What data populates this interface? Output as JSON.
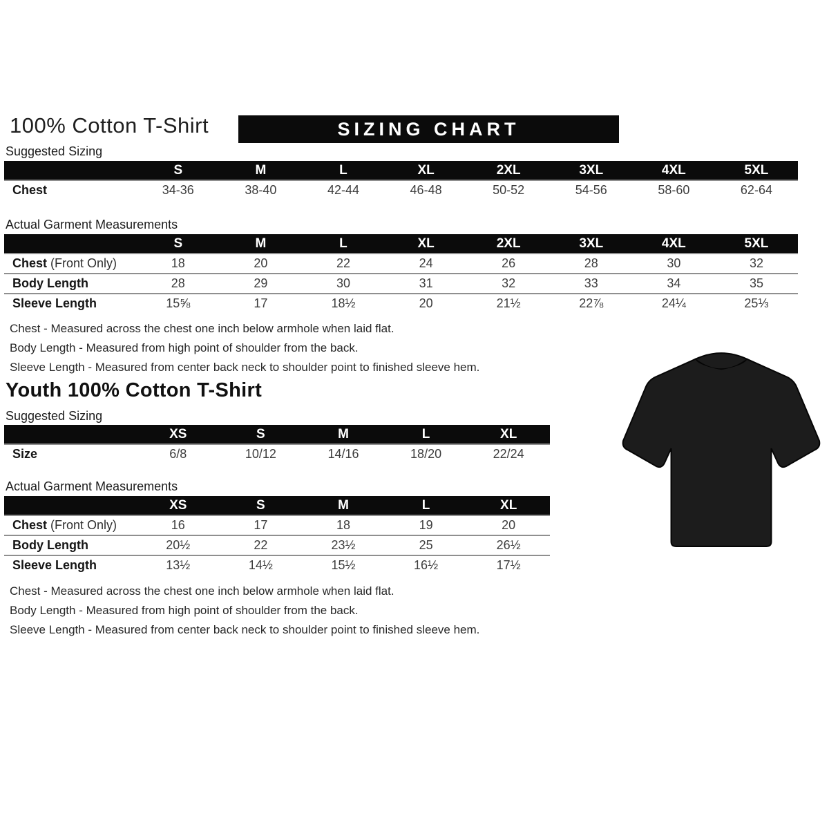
{
  "page": {
    "title": "100% Cotton T-Shirt",
    "banner": "SIZING CHART"
  },
  "adult": {
    "suggested_label": "Suggested Sizing",
    "suggested": {
      "columns": [
        "S",
        "M",
        "L",
        "XL",
        "2XL",
        "3XL",
        "4XL",
        "5XL"
      ],
      "rows": [
        {
          "label": "Chest",
          "suffix": "",
          "values": [
            "34-36",
            "38-40",
            "42-44",
            "46-48",
            "50-52",
            "54-56",
            "58-60",
            "62-64"
          ]
        }
      ]
    },
    "agm_label": "Actual Garment Measurements",
    "agm": {
      "columns": [
        "S",
        "M",
        "L",
        "XL",
        "2XL",
        "3XL",
        "4XL",
        "5XL"
      ],
      "rows": [
        {
          "label": "Chest",
          "suffix": " (Front Only)",
          "values": [
            "18",
            "20",
            "22",
            "24",
            "26",
            "28",
            "30",
            "32"
          ]
        },
        {
          "label": "Body Length",
          "suffix": "",
          "values": [
            "28",
            "29",
            "30",
            "31",
            "32",
            "33",
            "34",
            "35"
          ]
        },
        {
          "label": "Sleeve Length",
          "suffix": "",
          "values": [
            "15⅝",
            "17",
            "18½",
            "20",
            "21½",
            "22⅞",
            "24¼",
            "25⅓"
          ]
        }
      ]
    },
    "notes": [
      "Chest - Measured across the chest one inch below armhole when laid flat.",
      "Body Length - Measured from high point of shoulder from the back.",
      "Sleeve Length - Measured from center back neck to shoulder point to finished sleeve hem."
    ]
  },
  "youth": {
    "title": "Youth 100% Cotton T-Shirt",
    "suggested_label": "Suggested Sizing",
    "suggested": {
      "columns": [
        "XS",
        "S",
        "M",
        "L",
        "XL"
      ],
      "rows": [
        {
          "label": "Size",
          "suffix": "",
          "values": [
            "6/8",
            "10/12",
            "14/16",
            "18/20",
            "22/24"
          ]
        }
      ]
    },
    "agm_label": "Actual Garment Measurements",
    "agm": {
      "columns": [
        "XS",
        "S",
        "M",
        "L",
        "XL"
      ],
      "rows": [
        {
          "label": "Chest",
          "suffix": " (Front Only)",
          "values": [
            "16",
            "17",
            "18",
            "19",
            "20"
          ]
        },
        {
          "label": "Body Length",
          "suffix": "",
          "values": [
            "20½",
            "22",
            "23½",
            "25",
            "26½"
          ]
        },
        {
          "label": "Sleeve Length",
          "suffix": "",
          "values": [
            "13½",
            "14½",
            "15½",
            "16½",
            "17½"
          ]
        }
      ]
    },
    "notes": [
      "Chest - Measured across the chest one inch below armhole when laid flat.",
      "Body Length - Measured from high point of shoulder from the back.",
      "Sleeve Length - Measured from center back neck to shoulder point to finished sleeve hem."
    ]
  },
  "colors": {
    "banner_bg": "#0b0b0b",
    "table_header_bg": "#0b0b0b",
    "tshirt_fill": "#1c1c1c",
    "tshirt_outline": "#050505"
  }
}
